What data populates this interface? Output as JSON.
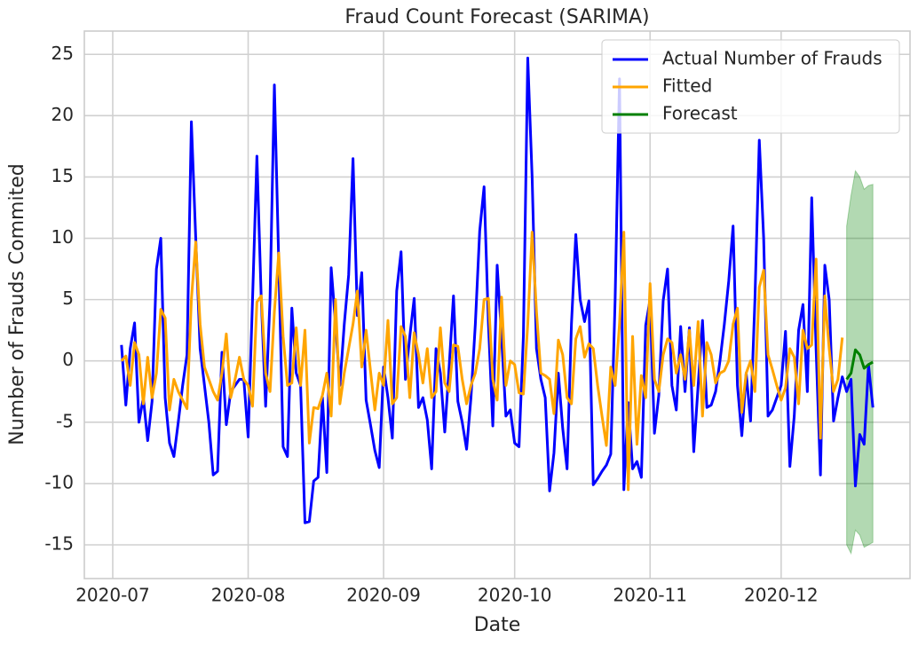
{
  "chart_data": {
    "type": "line",
    "title": "Fraud Count Forecast (SARIMA)",
    "x_label": "Date",
    "y_label": "Number of Frauds Commited",
    "x": [
      2,
      3,
      4,
      5,
      6,
      7,
      8,
      9,
      10,
      11,
      12,
      13,
      14,
      15,
      16,
      17,
      18,
      19,
      20,
      21,
      22,
      23,
      24,
      25,
      26,
      27,
      28,
      29,
      30,
      31,
      32,
      33,
      34,
      35,
      36,
      37,
      38,
      39,
      40,
      41,
      42,
      43,
      44,
      45,
      46,
      47,
      48,
      49,
      50,
      51,
      52,
      53,
      54,
      55,
      56,
      57,
      58,
      59,
      60,
      61,
      62,
      63,
      64,
      65,
      66,
      67,
      68,
      69,
      70,
      71,
      72,
      73,
      74,
      75,
      76,
      77,
      78,
      79,
      80,
      81,
      82,
      83,
      84,
      85,
      86,
      87,
      88,
      89,
      90,
      91,
      92,
      93,
      94,
      95,
      96,
      97,
      98,
      99,
      100,
      101,
      102,
      103,
      104,
      105,
      106,
      107,
      108,
      109,
      110,
      111,
      112,
      113,
      114,
      115,
      116,
      117,
      118,
      119,
      120,
      121,
      122,
      123,
      124,
      125,
      126,
      127,
      128,
      129,
      130,
      131,
      132,
      133,
      134,
      135,
      136,
      137,
      138,
      139,
      140,
      141,
      142,
      143,
      144,
      145,
      146,
      147,
      148,
      149,
      150,
      151,
      152,
      153,
      154,
      155,
      156,
      157,
      158,
      159,
      160,
      161,
      162,
      163,
      164,
      165,
      166,
      167,
      168,
      169,
      170,
      171,
      172,
      173,
      174
    ],
    "series": [
      {
        "name": "Actual Number of Frauds",
        "color": "#0000ff",
        "values": [
          1.3,
          -3.6,
          1,
          3.1,
          -5,
          -3,
          -6.5,
          -3.3,
          7.5,
          10,
          -3,
          -6.7,
          -7.8,
          -5,
          -2,
          0.5,
          19.5,
          10,
          1,
          -2,
          -5,
          -9.3,
          -9,
          0.7,
          -5.2,
          -2.5,
          -2,
          -1.5,
          -1.5,
          -6.2,
          5,
          16.7,
          5,
          -3.7,
          5,
          22.5,
          8,
          -7,
          -7.8,
          4.3,
          -1,
          -2,
          -13.2,
          -13.1,
          -9.8,
          -9.5,
          -3,
          -9.1,
          7.6,
          3,
          -2,
          3,
          7,
          16.5,
          3.7,
          7.2,
          -3.2,
          -5.2,
          -7.3,
          -8.7,
          -0.5,
          -3,
          -6.3,
          5.7,
          8.9,
          -1.5,
          2,
          5.1,
          -3.8,
          -3,
          -4.8,
          -8.8,
          1,
          -1,
          -5.8,
          -0.5,
          5.3,
          -3.3,
          -5,
          -7.2,
          -3,
          3,
          10.6,
          14.2,
          3,
          -5.3,
          7.8,
          2,
          -4.5,
          -4,
          -6.7,
          -7,
          2,
          24.7,
          15,
          1,
          -1.5,
          -3,
          -10.6,
          -7.5,
          -1,
          -5.5,
          -8.8,
          3,
          10.3,
          5,
          3.2,
          4.9,
          -10.1,
          -9.6,
          -9,
          -8.5,
          -7.6,
          5,
          23,
          -10.5,
          -3.4,
          -8.8,
          -8.2,
          -9.5,
          2.9,
          5,
          -5.9,
          -2.8,
          4.9,
          7.5,
          -2,
          -4,
          2.8,
          -2.5,
          2.7,
          -7.4,
          -2,
          3.3,
          -3.8,
          -3.6,
          -2.5,
          0,
          3,
          6.5,
          11,
          -2,
          -6.1,
          -1,
          -4.9,
          5,
          18,
          10,
          -4.5,
          -4,
          -3,
          -2,
          2.4,
          -8.6,
          -4.5,
          2.5,
          4.6,
          -2.5,
          13.3,
          1,
          -9.3,
          7.8,
          5,
          -4.9,
          -3,
          -1.3,
          -2.5,
          -1.5,
          -10.2,
          -6,
          -6.8,
          -0.3,
          -3.8
        ]
      },
      {
        "name": "Fitted",
        "color": "#ffa500",
        "values": [
          0,
          0.4,
          -2,
          1.5,
          0.5,
          -3.5,
          0.3,
          -3,
          -1,
          4.2,
          3.5,
          -4,
          -1.5,
          -2.5,
          -3.2,
          -3.9,
          5,
          9.7,
          3,
          -0.5,
          -1.5,
          -2.5,
          -3.2,
          -1,
          2.2,
          -3,
          -1.5,
          0.3,
          -1.5,
          -2,
          -3.7,
          4.8,
          5.3,
          -1,
          -2.5,
          4,
          8.8,
          2,
          -2,
          -1.8,
          2.7,
          -2,
          2.5,
          -6.7,
          -3.8,
          -3.9,
          -2.8,
          -1,
          -4.5,
          5,
          -3.5,
          -1,
          1,
          3,
          5.7,
          -0.5,
          2.5,
          -0.8,
          -4,
          -1,
          -2,
          3.3,
          -3.5,
          -3,
          2.8,
          2,
          -3,
          2.3,
          0.5,
          -1.8,
          1,
          -3,
          -2.5,
          2.7,
          -1.8,
          -2.5,
          1.3,
          1.2,
          -1.5,
          -3.5,
          -2,
          -1,
          1,
          5,
          5.1,
          -1.5,
          -3.2,
          5.2,
          -2,
          0,
          -0.3,
          -2.6,
          -2.7,
          3,
          10.5,
          4,
          -1,
          -1.2,
          -1.5,
          -4.3,
          1.7,
          0.5,
          -3,
          -3.5,
          1.8,
          2.8,
          0.3,
          1.4,
          1,
          -2,
          -4.5,
          -6.9,
          -0.5,
          -2,
          3,
          10.5,
          -10.5,
          2,
          -6.8,
          -1.2,
          -3,
          6.3,
          -1.5,
          -2.5,
          0.5,
          1.8,
          1.5,
          -1,
          0.5,
          -1.5,
          2.5,
          -2,
          3.2,
          -4.5,
          1.5,
          0.5,
          -1.8,
          -1,
          -0.8,
          0,
          3,
          4.3,
          -4.2,
          -1,
          0,
          -2.5,
          6,
          7.4,
          0.5,
          -0.7,
          -2,
          -3.2,
          -2.2,
          1,
          0.3,
          -3.5,
          2.5,
          1,
          1.3,
          8.3,
          -6.3,
          5.3,
          1,
          -2.5,
          -1.5,
          1.9,
          null,
          null,
          null,
          null,
          null,
          null,
          null
        ]
      },
      {
        "name": "Forecast",
        "color": "#008000",
        "x": [
          168,
          169,
          170,
          171,
          172,
          173,
          174
        ],
        "values": [
          -1.5,
          -1,
          0.9,
          0.5,
          -0.6,
          -0.3,
          -0.1
        ]
      }
    ],
    "interval": {
      "color": "#008000",
      "x": [
        168,
        169,
        170,
        171,
        172,
        173,
        174
      ],
      "lower": [
        -15,
        -15.7,
        -13.8,
        -14.2,
        -15.2,
        -15,
        -14.8
      ],
      "upper": [
        11,
        13.5,
        15.5,
        15,
        14,
        14.3,
        14.4
      ]
    },
    "xlim": [
      -6.5,
      182.5
    ],
    "xticks": [
      {
        "value": 0,
        "label": "2020-07"
      },
      {
        "value": 31,
        "label": "2020-08"
      },
      {
        "value": 62,
        "label": "2020-09"
      },
      {
        "value": 92,
        "label": "2020-10"
      },
      {
        "value": 123,
        "label": "2020-11"
      },
      {
        "value": 153,
        "label": "2020-12"
      }
    ],
    "ylim": [
      -17.75,
      26.9
    ],
    "yticks": [
      -15,
      -10,
      -5,
      0,
      5,
      10,
      15,
      20,
      25
    ],
    "grid": true,
    "legend": "upper right"
  }
}
